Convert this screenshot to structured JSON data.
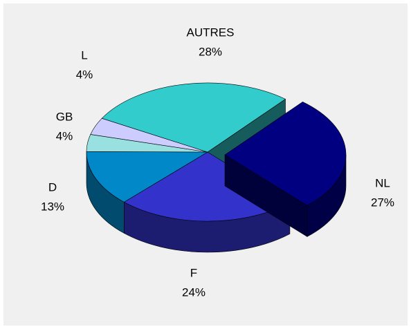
{
  "chart_data": {
    "type": "pie3d",
    "categories": [
      "NL",
      "F",
      "D",
      "GB",
      "L",
      "AUTRES"
    ],
    "values": [
      27,
      24,
      13,
      4,
      4,
      28
    ],
    "value_labels": [
      "27%",
      "24%",
      "13%",
      "4%",
      "4%",
      "28%"
    ],
    "colors": [
      "#000080",
      "#3333cc",
      "#0088c8",
      "#99e0e0",
      "#ccccff",
      "#33cccc"
    ]
  }
}
